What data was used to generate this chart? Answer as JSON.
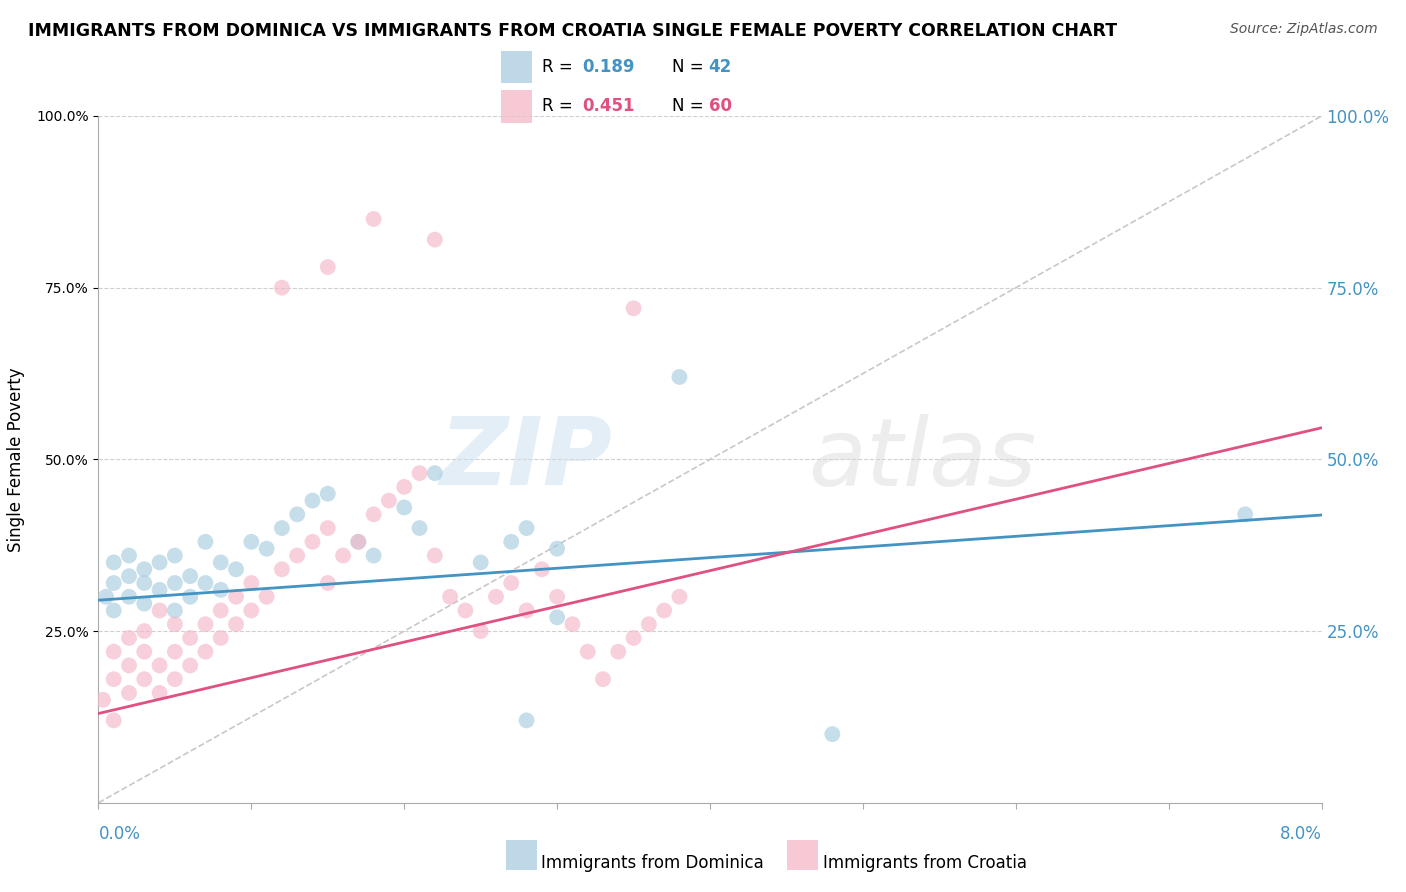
{
  "title": "IMMIGRANTS FROM DOMINICA VS IMMIGRANTS FROM CROATIA SINGLE FEMALE POVERTY CORRELATION CHART",
  "source": "Source: ZipAtlas.com",
  "ylabel": "Single Female Poverty",
  "legend_blue_r": "0.189",
  "legend_blue_n": "42",
  "legend_pink_r": "0.451",
  "legend_pink_n": "60",
  "blue_color": "#a8cce0",
  "pink_color": "#f4b8c8",
  "blue_line_color": "#4393c3",
  "pink_line_color": "#e05080",
  "diagonal_color": "#c8c8c8",
  "watermark_zip": "ZIP",
  "watermark_atlas": "atlas",
  "xlim": [
    0,
    0.08
  ],
  "ylim": [
    0,
    1.0
  ],
  "blue_x": [
    0.0005,
    0.001,
    0.001,
    0.001,
    0.002,
    0.002,
    0.002,
    0.003,
    0.003,
    0.003,
    0.004,
    0.004,
    0.005,
    0.005,
    0.005,
    0.006,
    0.006,
    0.007,
    0.007,
    0.008,
    0.008,
    0.009,
    0.01,
    0.011,
    0.012,
    0.013,
    0.014,
    0.015,
    0.017,
    0.018,
    0.02,
    0.021,
    0.022,
    0.025,
    0.027,
    0.028,
    0.03,
    0.038,
    0.028,
    0.048,
    0.03,
    0.075
  ],
  "blue_y": [
    0.3,
    0.32,
    0.28,
    0.35,
    0.33,
    0.3,
    0.36,
    0.32,
    0.34,
    0.29,
    0.31,
    0.35,
    0.32,
    0.36,
    0.28,
    0.3,
    0.33,
    0.32,
    0.38,
    0.31,
    0.35,
    0.34,
    0.38,
    0.37,
    0.4,
    0.42,
    0.44,
    0.45,
    0.38,
    0.36,
    0.43,
    0.4,
    0.48,
    0.35,
    0.38,
    0.4,
    0.37,
    0.62,
    0.12,
    0.1,
    0.27,
    0.42
  ],
  "pink_x": [
    0.0003,
    0.001,
    0.001,
    0.001,
    0.002,
    0.002,
    0.002,
    0.003,
    0.003,
    0.003,
    0.004,
    0.004,
    0.004,
    0.005,
    0.005,
    0.005,
    0.006,
    0.006,
    0.007,
    0.007,
    0.008,
    0.008,
    0.009,
    0.009,
    0.01,
    0.01,
    0.011,
    0.012,
    0.013,
    0.014,
    0.015,
    0.015,
    0.016,
    0.017,
    0.018,
    0.019,
    0.02,
    0.021,
    0.022,
    0.023,
    0.024,
    0.025,
    0.026,
    0.027,
    0.028,
    0.029,
    0.03,
    0.031,
    0.032,
    0.033,
    0.034,
    0.035,
    0.036,
    0.037,
    0.038,
    0.018,
    0.022,
    0.035,
    0.015,
    0.012
  ],
  "pink_y": [
    0.15,
    0.18,
    0.22,
    0.12,
    0.2,
    0.16,
    0.24,
    0.22,
    0.18,
    0.25,
    0.2,
    0.28,
    0.16,
    0.22,
    0.26,
    0.18,
    0.24,
    0.2,
    0.26,
    0.22,
    0.28,
    0.24,
    0.3,
    0.26,
    0.28,
    0.32,
    0.3,
    0.34,
    0.36,
    0.38,
    0.32,
    0.4,
    0.36,
    0.38,
    0.42,
    0.44,
    0.46,
    0.48,
    0.36,
    0.3,
    0.28,
    0.25,
    0.3,
    0.32,
    0.28,
    0.34,
    0.3,
    0.26,
    0.22,
    0.18,
    0.22,
    0.24,
    0.26,
    0.28,
    0.3,
    0.85,
    0.82,
    0.72,
    0.78,
    0.75
  ]
}
